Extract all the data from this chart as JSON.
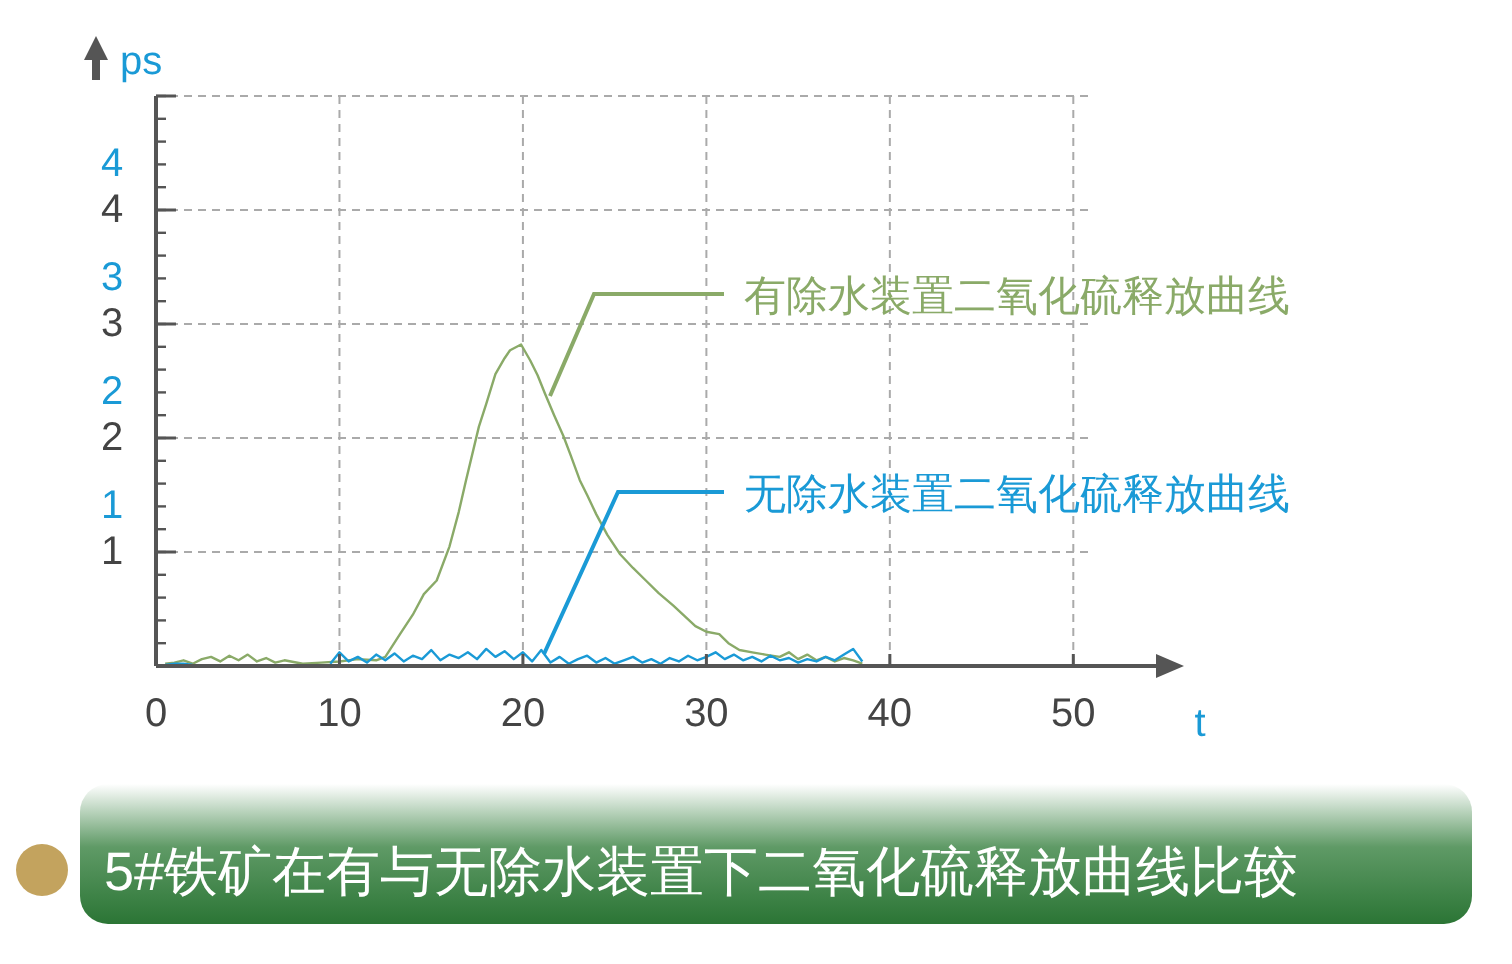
{
  "chart_data": {
    "type": "line",
    "title": "5#铁矿在有与无除水装置下二氧化硫释放曲线比较",
    "xlabel": "t",
    "y2label": "ps",
    "xlim": [
      0,
      52
    ],
    "xticks": [
      0,
      10,
      20,
      30,
      40,
      50
    ],
    "ylim": [
      0,
      5
    ],
    "yticks": [
      1,
      2,
      3,
      4,
      {
        "value": 5,
        "label": null
      }
    ],
    "y2lim": [
      -0.4,
      4.6
    ],
    "y2ticks": [
      1,
      2,
      3,
      4
    ],
    "grid": true,
    "marker": "none",
    "line_style": "solid",
    "series": [
      {
        "name": "有除水装置二氧化硫释放曲线",
        "color": "#8aaa68",
        "x": [
          0.5,
          1,
          1.5,
          2,
          2.5,
          3,
          3.5,
          4,
          4.5,
          5,
          5.5,
          6,
          6.5,
          7,
          8,
          9,
          10,
          11,
          12,
          12.5,
          13.3,
          14,
          14.6,
          15.3,
          16,
          16.5,
          16.9,
          17.6,
          18,
          18.5,
          19,
          19.3,
          19.9,
          20.4,
          20.8,
          21.2,
          21.7,
          22.2,
          22.6,
          23.1,
          23.5,
          24,
          24.6,
          25.3,
          26,
          26.7,
          27.4,
          28.2,
          28.8,
          29.4,
          30,
          30.7,
          31.2,
          31.8,
          32.5,
          33.2,
          34,
          34.5,
          35,
          35.5,
          36,
          36.5,
          37,
          37.5,
          38,
          38.5
        ],
        "values": [
          0.02,
          0.03,
          0.05,
          0.02,
          0.06,
          0.08,
          0.04,
          0.09,
          0.05,
          0.1,
          0.04,
          0.07,
          0.03,
          0.05,
          0.02,
          0.03,
          0.04,
          0.06,
          0.05,
          0.08,
          0.28,
          0.45,
          0.63,
          0.75,
          1.05,
          1.35,
          1.63,
          2.1,
          2.3,
          2.56,
          2.7,
          2.77,
          2.82,
          2.68,
          2.55,
          2.39,
          2.2,
          2.02,
          1.85,
          1.63,
          1.5,
          1.33,
          1.15,
          0.98,
          0.86,
          0.75,
          0.64,
          0.53,
          0.44,
          0.35,
          0.3,
          0.28,
          0.2,
          0.14,
          0.12,
          0.1,
          0.08,
          0.12,
          0.06,
          0.1,
          0.05,
          0.08,
          0.04,
          0.07,
          0.05,
          0.02
        ]
      },
      {
        "name": "无除水装置二氧化硫释放曲线",
        "color": "#1a9ad6",
        "x": [
          0.5,
          1,
          1.5,
          2,
          2.5,
          9.5,
          10,
          10.5,
          11,
          11.5,
          12,
          12.5,
          13,
          13.5,
          14,
          14.5,
          15,
          15.5,
          16,
          16.5,
          17,
          17.5,
          18,
          18.5,
          19,
          19.5,
          20,
          20.5,
          21,
          21.5,
          22,
          22.5,
          23,
          23.5,
          24,
          24.5,
          25,
          25.5,
          26,
          26.5,
          27,
          27.5,
          28,
          28.5,
          29,
          29.5,
          30,
          30.5,
          31,
          31.5,
          32,
          32.5,
          33,
          33.5,
          34,
          34.5,
          35,
          35.5,
          36,
          36.5,
          37,
          37.5,
          38,
          38.5
        ],
        "values": [
          0.01,
          0.02,
          0.02,
          0.01,
          null,
          0.02,
          0.12,
          0.04,
          0.08,
          0.03,
          0.1,
          0.05,
          0.11,
          0.04,
          0.09,
          0.06,
          0.14,
          0.05,
          0.1,
          0.07,
          0.12,
          0.06,
          0.15,
          0.08,
          0.13,
          0.06,
          0.12,
          0.04,
          0.14,
          0.03,
          0.08,
          0.02,
          0.06,
          0.09,
          0.03,
          0.07,
          0.02,
          0.05,
          0.08,
          0.03,
          0.06,
          0.02,
          0.07,
          0.04,
          0.09,
          0.05,
          0.08,
          0.12,
          0.06,
          0.1,
          0.05,
          0.08,
          0.04,
          0.09,
          0.05,
          0.07,
          0.03,
          0.06,
          0.04,
          0.08,
          0.05,
          0.1,
          0.15,
          0.04
        ]
      }
    ]
  }
}
